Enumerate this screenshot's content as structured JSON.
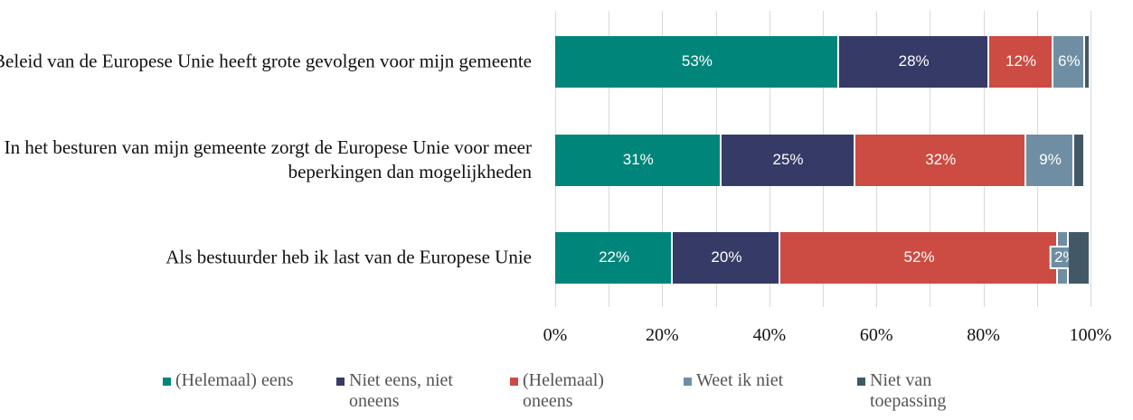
{
  "chart_data": {
    "type": "stacked-barh",
    "categories": [
      "Beleid van de Europese Unie heeft grote gevolgen voor mijn gemeente",
      "In het besturen van mijn gemeente zorgt de Europese Unie voor meer beperkingen dan mogelijkheden",
      "Als bestuurder heb ik last van de Europese Unie"
    ],
    "series": [
      {
        "name": "(Helemaal) eens",
        "color": "#00857a",
        "values": [
          53,
          31,
          22
        ],
        "value_labels": [
          "53%",
          "31%",
          "22%"
        ]
      },
      {
        "name": "Niet eens, niet oneens",
        "color": "#363a66",
        "values": [
          28,
          25,
          20
        ],
        "value_labels": [
          "28%",
          "25%",
          "20%"
        ]
      },
      {
        "name": "(Helemaal) oneens",
        "color": "#cc4b42",
        "values": [
          12,
          32,
          52
        ],
        "value_labels": [
          "12%",
          "32%",
          "52%"
        ]
      },
      {
        "name": "Weet ik niet",
        "color": "#6f8ea3",
        "values": [
          6,
          9,
          2
        ],
        "value_labels": [
          "6%",
          "9%",
          "2%"
        ]
      },
      {
        "name": "Niet van toepassing",
        "color": "#435866",
        "values": [
          1,
          2,
          4
        ],
        "value_labels": [
          null,
          null,
          null
        ]
      }
    ],
    "xlim": [
      0,
      100
    ],
    "xticks": [
      {
        "value": 0,
        "label": "0%"
      },
      {
        "value": 20,
        "label": "20%"
      },
      {
        "value": 40,
        "label": "40%"
      },
      {
        "value": 60,
        "label": "60%"
      },
      {
        "value": 80,
        "label": "80%"
      },
      {
        "value": 100,
        "label": "100%"
      }
    ],
    "minor_xticks": [
      10,
      30,
      50,
      70,
      90
    ],
    "grid": true,
    "legend": "bottom"
  }
}
